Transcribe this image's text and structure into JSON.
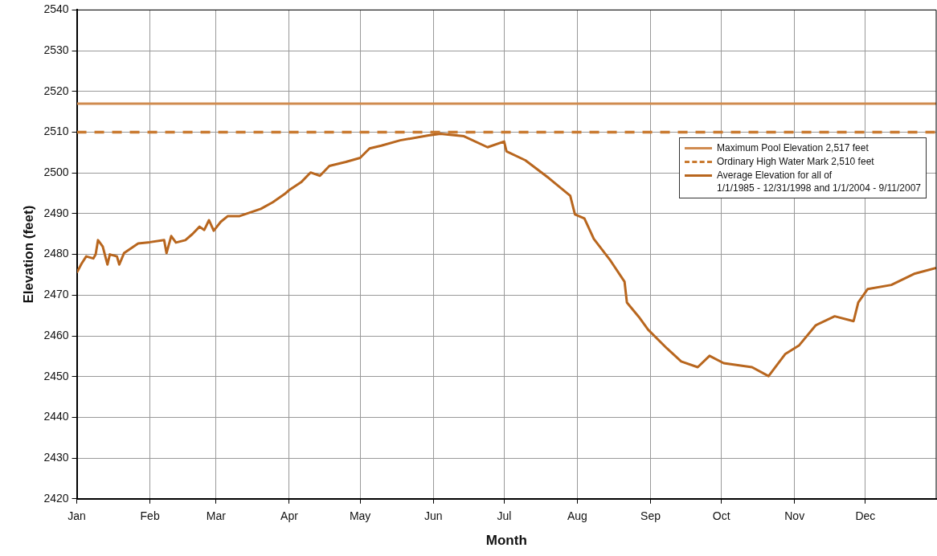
{
  "chart_data": {
    "type": "line",
    "xlabel": "Month",
    "ylabel": "Elevation (feet)",
    "xlim": [
      "--01-01",
      "--12-31"
    ],
    "xticks": [
      {
        "value": "--01-01",
        "label": "Jan"
      },
      {
        "value": "--02-01",
        "label": "Feb"
      },
      {
        "value": "--03-01",
        "label": "Mar"
      },
      {
        "value": "--04-01",
        "label": "Apr"
      },
      {
        "value": "--05-01",
        "label": "May"
      },
      {
        "value": "--06-01",
        "label": "Jun"
      },
      {
        "value": "--07-01",
        "label": "Jul"
      },
      {
        "value": "--08-01",
        "label": "Aug"
      },
      {
        "value": "--09-01",
        "label": "Sep"
      },
      {
        "value": "--10-01",
        "label": "Oct"
      },
      {
        "value": "--11-01",
        "label": "Nov"
      },
      {
        "value": "--12-01",
        "label": "Dec"
      }
    ],
    "ylim": [
      2420,
      2540
    ],
    "yticks": [
      2420,
      2430,
      2440,
      2450,
      2460,
      2470,
      2480,
      2490,
      2500,
      2510,
      2520,
      2530,
      2540
    ],
    "grid": true,
    "legend": "right",
    "marker": "none",
    "series": [
      {
        "name": "Maximum Pool Elevation  2,517 feet",
        "color": "#d08b4f",
        "line_style": "solid",
        "x": [
          "--01-01",
          "--12-31"
        ],
        "values": [
          2517,
          2517
        ]
      },
      {
        "name": "Ordinary High Water Mark  2,510 feet",
        "color": "#c97a30",
        "line_style": "dashed",
        "x": [
          "--01-01",
          "--12-31"
        ],
        "values": [
          2510,
          2510
        ]
      },
      {
        "name": "Average Elevation for all of\n1/1/1985 - 12/31/1998 and 1/1/2004 - 9/11/2007",
        "color": "#b8661e",
        "line_style": "solid",
        "x": [
          "--01-01",
          "--01-03",
          "--01-05",
          "--01-08",
          "--01-09",
          "--01-10",
          "--01-12",
          "--01-14",
          "--01-15",
          "--01-18",
          "--01-19",
          "--01-21",
          "--01-24",
          "--01-27",
          "--02-01",
          "--02-07",
          "--02-08",
          "--02-10",
          "--02-12",
          "--02-16",
          "--02-19",
          "--02-22",
          "--02-24",
          "--02-26",
          "--02-28",
          "--03-03",
          "--03-06",
          "--03-11",
          "--03-15",
          "--03-20",
          "--03-25",
          "--03-30",
          "--04-01",
          "--04-06",
          "--04-10",
          "--04-14",
          "--04-18",
          "--04-25",
          "--05-01",
          "--05-05",
          "--05-10",
          "--05-18",
          "--05-30",
          "--06-04",
          "--06-14",
          "--06-24",
          "--07-01",
          "--07-02",
          "--07-10",
          "--07-20",
          "--07-29",
          "--07-31",
          "--08-04",
          "--08-08",
          "--08-15",
          "--08-21",
          "--08-22",
          "--08-27",
          "--08-31",
          "--09-08",
          "--09-14",
          "--09-21",
          "--09-26",
          "--10-02",
          "--10-14",
          "--10-21",
          "--10-28",
          "--11-03",
          "--11-10",
          "--11-18",
          "--11-26",
          "--11-28",
          "--12-02",
          "--12-12",
          "--12-22",
          "--12-31"
        ],
        "values": [
          2475.5,
          2477.7,
          2479.5,
          2479,
          2480,
          2483.5,
          2481.9,
          2477.5,
          2480,
          2479.5,
          2477.5,
          2480.3,
          2481.5,
          2482.7,
          2483,
          2483.5,
          2480.3,
          2484.5,
          2482.9,
          2483.5,
          2485,
          2486.8,
          2486,
          2488.4,
          2485.8,
          2488,
          2489.4,
          2489.4,
          2490.2,
          2491.2,
          2492.8,
          2494.8,
          2495.8,
          2497.7,
          2500.1,
          2499.3,
          2501.7,
          2502.7,
          2503.7,
          2506,
          2506.7,
          2508,
          2509.2,
          2509.6,
          2509,
          2506.3,
          2507.7,
          2505.3,
          2503.1,
          2498.7,
          2494.4,
          2489.8,
          2488.8,
          2483.8,
          2478.5,
          2473.3,
          2468.2,
          2464.7,
          2461.5,
          2456.9,
          2453.7,
          2452.3,
          2455.1,
          2453.3,
          2452.3,
          2450.1,
          2455.5,
          2457.7,
          2462.6,
          2464.8,
          2463.6,
          2468.2,
          2471.5,
          2472.5,
          2475.3,
          2476.7
        ]
      }
    ]
  }
}
